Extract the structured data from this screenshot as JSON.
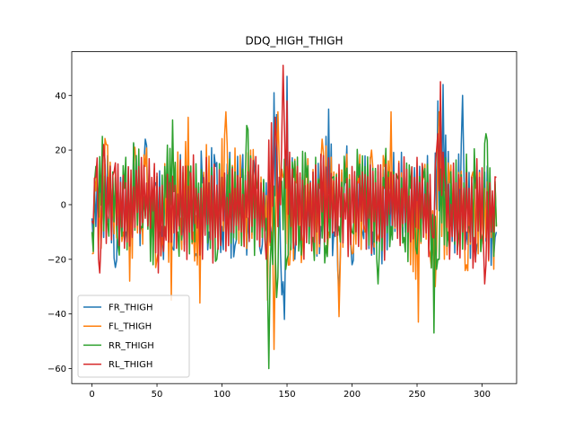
{
  "chart_data": {
    "type": "line",
    "title": "DDQ_HIGH_THIGH",
    "xlabel": "",
    "ylabel": "",
    "xlim": [
      -15.55,
      326.55
    ],
    "ylim": [
      -65.5,
      56.0
    ],
    "xticks": [
      0,
      50,
      100,
      150,
      200,
      250,
      300
    ],
    "yticks": [
      -60,
      -40,
      -20,
      0,
      20,
      40
    ],
    "grid": false,
    "legend_position": "lower-left",
    "n_points": 312,
    "series": [
      {
        "name": "FR_THIGH",
        "color": "#1f77b4",
        "anchors": [
          [
            0,
            -5
          ],
          [
            3,
            -8
          ],
          [
            6,
            8
          ],
          [
            9,
            -12
          ],
          [
            12,
            18
          ],
          [
            15,
            -14
          ],
          [
            18,
            -23
          ],
          [
            22,
            10
          ],
          [
            26,
            -10
          ],
          [
            30,
            0
          ],
          [
            34,
            18
          ],
          [
            37,
            -15
          ],
          [
            41,
            24
          ],
          [
            45,
            -12
          ],
          [
            49,
            8
          ],
          [
            54,
            -8
          ],
          [
            58,
            6
          ],
          [
            62,
            -16
          ],
          [
            66,
            10
          ],
          [
            70,
            -5
          ],
          [
            75,
            12
          ],
          [
            80,
            -18
          ],
          [
            85,
            8
          ],
          [
            90,
            -10
          ],
          [
            95,
            14
          ],
          [
            100,
            -8
          ],
          [
            105,
            6
          ],
          [
            110,
            -15
          ],
          [
            115,
            10
          ],
          [
            120,
            -5
          ],
          [
            125,
            14
          ],
          [
            130,
            -18
          ],
          [
            134,
            8
          ],
          [
            138,
            -10
          ],
          [
            140,
            41
          ],
          [
            142,
            33
          ],
          [
            144,
            10
          ],
          [
            146,
            -33
          ],
          [
            148,
            -42
          ],
          [
            150,
            47
          ],
          [
            152,
            16
          ],
          [
            156,
            -20
          ],
          [
            160,
            10
          ],
          [
            165,
            -10
          ],
          [
            170,
            12
          ],
          [
            176,
            -8
          ],
          [
            182,
            35
          ],
          [
            186,
            -10
          ],
          [
            190,
            -32
          ],
          [
            195,
            10
          ],
          [
            200,
            -22
          ],
          [
            204,
            14
          ],
          [
            208,
            -10
          ],
          [
            212,
            6
          ],
          [
            216,
            -10
          ],
          [
            220,
            12
          ],
          [
            225,
            -20
          ],
          [
            230,
            8
          ],
          [
            235,
            -10
          ],
          [
            240,
            10
          ],
          [
            245,
            -15
          ],
          [
            250,
            6
          ],
          [
            255,
            -10
          ],
          [
            258,
            18
          ],
          [
            262,
            -10
          ],
          [
            266,
            38
          ],
          [
            270,
            44
          ],
          [
            275,
            -10
          ],
          [
            280,
            8
          ],
          [
            285,
            40
          ],
          [
            288,
            -10
          ],
          [
            292,
            8
          ],
          [
            296,
            -15
          ],
          [
            300,
            10
          ],
          [
            305,
            -8
          ],
          [
            310,
            -12
          ],
          [
            311,
            -10
          ]
        ]
      },
      {
        "name": "FL_THIGH",
        "color": "#ff7f0e",
        "anchors": [
          [
            0,
            -18
          ],
          [
            3,
            5
          ],
          [
            7,
            -16
          ],
          [
            11,
            22
          ],
          [
            15,
            -10
          ],
          [
            20,
            5
          ],
          [
            24,
            -10
          ],
          [
            29,
            -28
          ],
          [
            33,
            21
          ],
          [
            37,
            -8
          ],
          [
            41,
            14
          ],
          [
            46,
            -6
          ],
          [
            50,
            -20
          ],
          [
            54,
            -12
          ],
          [
            58,
            8
          ],
          [
            61,
            -35
          ],
          [
            63,
            8
          ],
          [
            68,
            -5
          ],
          [
            74,
            32
          ],
          [
            78,
            -10
          ],
          [
            83,
            -36
          ],
          [
            88,
            22
          ],
          [
            93,
            -10
          ],
          [
            98,
            6
          ],
          [
            103,
            34
          ],
          [
            107,
            -8
          ],
          [
            112,
            10
          ],
          [
            117,
            -15
          ],
          [
            122,
            20
          ],
          [
            127,
            -5
          ],
          [
            132,
            4
          ],
          [
            135,
            -35
          ],
          [
            138,
            12
          ],
          [
            140,
            -53
          ],
          [
            143,
            34
          ],
          [
            147,
            10
          ],
          [
            152,
            -22
          ],
          [
            157,
            8
          ],
          [
            162,
            -14
          ],
          [
            168,
            8
          ],
          [
            173,
            -18
          ],
          [
            177,
            24
          ],
          [
            182,
            -10
          ],
          [
            186,
            12
          ],
          [
            190,
            -41
          ],
          [
            195,
            10
          ],
          [
            200,
            -18
          ],
          [
            205,
            8
          ],
          [
            210,
            -10
          ],
          [
            215,
            20
          ],
          [
            220,
            -12
          ],
          [
            225,
            14
          ],
          [
            230,
            34
          ],
          [
            235,
            -10
          ],
          [
            240,
            14
          ],
          [
            245,
            -22
          ],
          [
            251,
            -43
          ],
          [
            255,
            10
          ],
          [
            260,
            -18
          ],
          [
            264,
            -30
          ],
          [
            267,
            34
          ],
          [
            271,
            -20
          ],
          [
            275,
            8
          ],
          [
            279,
            -12
          ],
          [
            283,
            6
          ],
          [
            288,
            -22
          ],
          [
            293,
            12
          ],
          [
            297,
            -18
          ],
          [
            302,
            6
          ],
          [
            307,
            -12
          ],
          [
            311,
            -8
          ]
        ]
      },
      {
        "name": "RR_THIGH",
        "color": "#2ca02c",
        "anchors": [
          [
            0,
            -10
          ],
          [
            3,
            14
          ],
          [
            8,
            25
          ],
          [
            12,
            -6
          ],
          [
            16,
            12
          ],
          [
            20,
            -15
          ],
          [
            25,
            6
          ],
          [
            29,
            -10
          ],
          [
            34,
            18
          ],
          [
            38,
            -8
          ],
          [
            42,
            6
          ],
          [
            47,
            -22
          ],
          [
            52,
            -10
          ],
          [
            56,
            14
          ],
          [
            62,
            31
          ],
          [
            66,
            -10
          ],
          [
            70,
            8
          ],
          [
            75,
            -18
          ],
          [
            80,
            15
          ],
          [
            85,
            -10
          ],
          [
            90,
            8
          ],
          [
            96,
            -20
          ],
          [
            100,
            10
          ],
          [
            105,
            -8
          ],
          [
            110,
            12
          ],
          [
            115,
            -15
          ],
          [
            119,
            29
          ],
          [
            123,
            -10
          ],
          [
            127,
            6
          ],
          [
            131,
            -12
          ],
          [
            134,
            -5
          ],
          [
            136,
            -60
          ],
          [
            138,
            -10
          ],
          [
            142,
            -34
          ],
          [
            145,
            6
          ],
          [
            150,
            -20
          ],
          [
            155,
            10
          ],
          [
            160,
            -8
          ],
          [
            165,
            10
          ],
          [
            170,
            -12
          ],
          [
            175,
            6
          ],
          [
            180,
            -15
          ],
          [
            185,
            10
          ],
          [
            190,
            -8
          ],
          [
            195,
            8
          ],
          [
            200,
            -10
          ],
          [
            205,
            10
          ],
          [
            210,
            14
          ],
          [
            215,
            -10
          ],
          [
            220,
            -29
          ],
          [
            225,
            6
          ],
          [
            230,
            -8
          ],
          [
            235,
            10
          ],
          [
            240,
            -12
          ],
          [
            245,
            6
          ],
          [
            250,
            -18
          ],
          [
            255,
            10
          ],
          [
            259,
            -8
          ],
          [
            263,
            -47
          ],
          [
            266,
            -20
          ],
          [
            270,
            18
          ],
          [
            274,
            -10
          ],
          [
            278,
            6
          ],
          [
            282,
            -12
          ],
          [
            286,
            8
          ],
          [
            290,
            -8
          ],
          [
            295,
            6
          ],
          [
            300,
            -12
          ],
          [
            303,
            26
          ],
          [
            307,
            -10
          ],
          [
            311,
            -8
          ]
        ]
      },
      {
        "name": "RL_THIGH",
        "color": "#d62728",
        "anchors": [
          [
            0,
            -6
          ],
          [
            3,
            10
          ],
          [
            6,
            -25
          ],
          [
            9,
            22
          ],
          [
            13,
            -5
          ],
          [
            17,
            12
          ],
          [
            21,
            -15
          ],
          [
            26,
            8
          ],
          [
            31,
            -12
          ],
          [
            36,
            14
          ],
          [
            41,
            -5
          ],
          [
            46,
            10
          ],
          [
            51,
            -25
          ],
          [
            56,
            -8
          ],
          [
            60,
            8
          ],
          [
            65,
            -16
          ],
          [
            70,
            14
          ],
          [
            75,
            -10
          ],
          [
            80,
            6
          ],
          [
            85,
            -20
          ],
          [
            90,
            8
          ],
          [
            95,
            -12
          ],
          [
            100,
            10
          ],
          [
            105,
            -15
          ],
          [
            110,
            6
          ],
          [
            115,
            -10
          ],
          [
            120,
            12
          ],
          [
            125,
            -5
          ],
          [
            130,
            8
          ],
          [
            134,
            -20
          ],
          [
            138,
            30
          ],
          [
            141,
            32
          ],
          [
            144,
            10
          ],
          [
            147,
            51
          ],
          [
            150,
            38
          ],
          [
            153,
            -8
          ],
          [
            158,
            14
          ],
          [
            163,
            -20
          ],
          [
            168,
            8
          ],
          [
            173,
            -10
          ],
          [
            178,
            18
          ],
          [
            183,
            -5
          ],
          [
            188,
            10
          ],
          [
            193,
            -14
          ],
          [
            198,
            6
          ],
          [
            203,
            -10
          ],
          [
            208,
            12
          ],
          [
            213,
            -5
          ],
          [
            218,
            8
          ],
          [
            223,
            -12
          ],
          [
            228,
            10
          ],
          [
            233,
            -8
          ],
          [
            238,
            6
          ],
          [
            243,
            -10
          ],
          [
            248,
            10
          ],
          [
            253,
            -5
          ],
          [
            258,
            8
          ],
          [
            262,
            -12
          ],
          [
            265,
            20
          ],
          [
            268,
            45
          ],
          [
            271,
            10
          ],
          [
            275,
            -20
          ],
          [
            280,
            8
          ],
          [
            285,
            -10
          ],
          [
            290,
            6
          ],
          [
            294,
            -12
          ],
          [
            298,
            10
          ],
          [
            302,
            -29
          ],
          [
            306,
            8
          ],
          [
            309,
            -10
          ],
          [
            311,
            10
          ]
        ]
      }
    ]
  }
}
